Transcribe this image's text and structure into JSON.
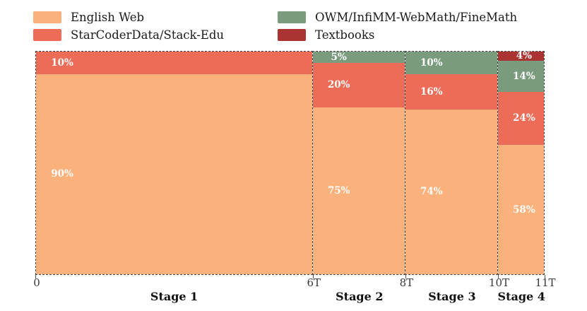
{
  "colors": {
    "english_web": "#FBB17B",
    "starcoder": "#EC6C57",
    "owm": "#7A9B7D",
    "textbooks": "#A93431",
    "bar_border": "#454545",
    "tick": "#555555",
    "tick_label": "#383838",
    "legend_text": "#1a1a1a",
    "pct_label": "#ffffff"
  },
  "legend": {
    "items": [
      {
        "label": "English Web",
        "color_key": "english_web"
      },
      {
        "label": "StarCoderData/Stack-Edu",
        "color_key": "starcoder"
      },
      {
        "label": "OWM/InfiMM-WebMath/FineMath",
        "color_key": "owm"
      },
      {
        "label": "Textbooks",
        "color_key": "textbooks"
      }
    ]
  },
  "chart_data": {
    "type": "bar",
    "variant": "variable-width-stacked-percentage",
    "title": "",
    "xlabel": "",
    "ylabel": "",
    "x_axis": {
      "range_tokens": [
        0,
        11
      ],
      "ticks": [
        {
          "label": "0",
          "t": 0
        },
        {
          "label": "6T",
          "t": 6
        },
        {
          "label": "8T",
          "t": 8
        },
        {
          "label": "10T",
          "t": 10
        },
        {
          "label": "11T",
          "t": 11
        }
      ]
    },
    "y_axis": {
      "range": [
        0,
        100
      ],
      "unit": "percent",
      "visible": false
    },
    "legend_position": "top",
    "grid": false,
    "stages": [
      {
        "name": "Stage 1",
        "x_start": 0,
        "x_end": 6,
        "segments": [
          {
            "series": "StarCoderData/Stack-Edu",
            "color_key": "starcoder",
            "pct": 10,
            "label": "10%"
          },
          {
            "series": "English Web",
            "color_key": "english_web",
            "pct": 90,
            "label": "90%"
          }
        ]
      },
      {
        "name": "Stage 2",
        "x_start": 6,
        "x_end": 8,
        "segments": [
          {
            "series": "OWM/InfiMM-WebMath/FineMath",
            "color_key": "owm",
            "pct": 5,
            "label": "5%"
          },
          {
            "series": "StarCoderData/Stack-Edu",
            "color_key": "starcoder",
            "pct": 20,
            "label": "20%"
          },
          {
            "series": "English Web",
            "color_key": "english_web",
            "pct": 75,
            "label": "75%"
          }
        ]
      },
      {
        "name": "Stage 3",
        "x_start": 8,
        "x_end": 10,
        "segments": [
          {
            "series": "OWM/InfiMM-WebMath/FineMath",
            "color_key": "owm",
            "pct": 10,
            "label": "10%"
          },
          {
            "series": "StarCoderData/Stack-Edu",
            "color_key": "starcoder",
            "pct": 16,
            "label": "16%"
          },
          {
            "series": "English Web",
            "color_key": "english_web",
            "pct": 74,
            "label": "74%"
          }
        ]
      },
      {
        "name": "Stage 4",
        "x_start": 10,
        "x_end": 11,
        "segments": [
          {
            "series": "Textbooks",
            "color_key": "textbooks",
            "pct": 4,
            "label": "4%"
          },
          {
            "series": "OWM/InfiMM-WebMath/FineMath",
            "color_key": "owm",
            "pct": 14,
            "label": "14%"
          },
          {
            "series": "StarCoderData/Stack-Edu",
            "color_key": "starcoder",
            "pct": 24,
            "label": "24%"
          },
          {
            "series": "English Web",
            "color_key": "english_web",
            "pct": 58,
            "label": "58%"
          }
        ]
      }
    ]
  }
}
